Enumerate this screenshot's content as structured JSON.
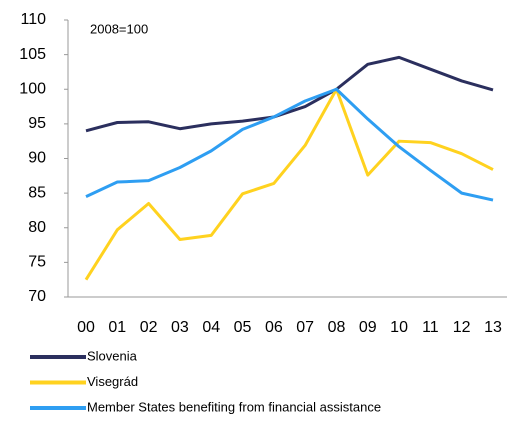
{
  "chart_data": {
    "type": "line",
    "annotation": "2008=100",
    "categories": [
      "00",
      "01",
      "02",
      "03",
      "04",
      "05",
      "06",
      "07",
      "08",
      "09",
      "10",
      "11",
      "12",
      "13"
    ],
    "series": [
      {
        "name": "Slovenia",
        "color": "#2b2f5e",
        "values": [
          94,
          95.2,
          95.3,
          94.3,
          95,
          95.4,
          96,
          97.5,
          100,
          103.6,
          104.6,
          102.9,
          101.2,
          99.9
        ]
      },
      {
        "name": "Visegrád",
        "color": "#ffd21f",
        "values": [
          72.5,
          79.7,
          83.5,
          78.3,
          78.9,
          84.9,
          86.4,
          91.9,
          100,
          87.6,
          92.5,
          92.3,
          90.7,
          88.4
        ]
      },
      {
        "name": "Member States benefiting from financial assistance",
        "color": "#2e9ef2",
        "values": [
          84.5,
          86.6,
          86.8,
          88.7,
          91.1,
          94.2,
          96,
          98.3,
          100,
          95.7,
          91.7,
          88.3,
          85,
          84
        ]
      }
    ],
    "ylim": [
      70,
      110
    ],
    "yticks": [
      70,
      75,
      80,
      85,
      90,
      95,
      100,
      105,
      110
    ],
    "grid": false
  }
}
